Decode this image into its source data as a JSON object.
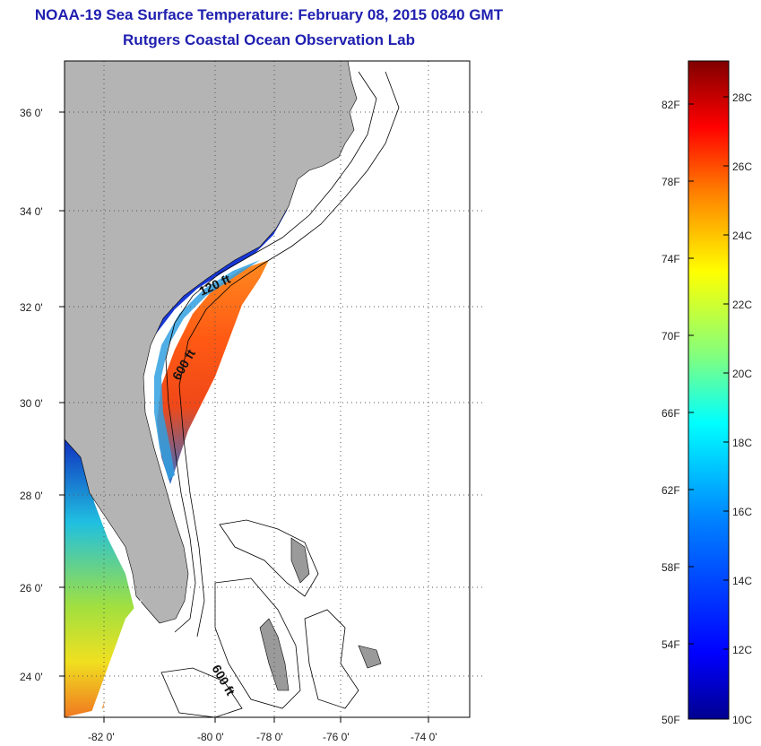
{
  "header": {
    "title": "NOAA-19 Sea Surface Temperature:  February 08, 2015 0840 GMT",
    "subtitle": "Rutgers Coastal Ocean Observation Lab"
  },
  "map": {
    "lat_labels": [
      "36 0'",
      "34 0'",
      "32 0'",
      "30 0'",
      "28 0'",
      "26 0'",
      "24 0'"
    ],
    "lon_labels": [
      "-82 0'",
      "-80 0'",
      "-78 0'",
      "-76 0'",
      "-74 0'"
    ],
    "contour_labels": [
      "120 ft",
      "600 ft",
      "600 ft"
    ],
    "colors": {
      "land": "#b4b4b4",
      "grid": "#555555",
      "outline": "#000000"
    }
  },
  "colorbar": {
    "fahrenheit_labels": [
      "82F",
      "78F",
      "74F",
      "70F",
      "66F",
      "62F",
      "58F",
      "54F",
      "50F"
    ],
    "celsius_labels": [
      "28C",
      "26C",
      "24C",
      "22C",
      "20C",
      "18C",
      "16C",
      "14C",
      "12C",
      "10C"
    ],
    "colors": [
      "#00008f",
      "#0000ff",
      "#0080ff",
      "#00ffff",
      "#80ff80",
      "#ffff00",
      "#ff8000",
      "#ff0000",
      "#800000"
    ]
  }
}
